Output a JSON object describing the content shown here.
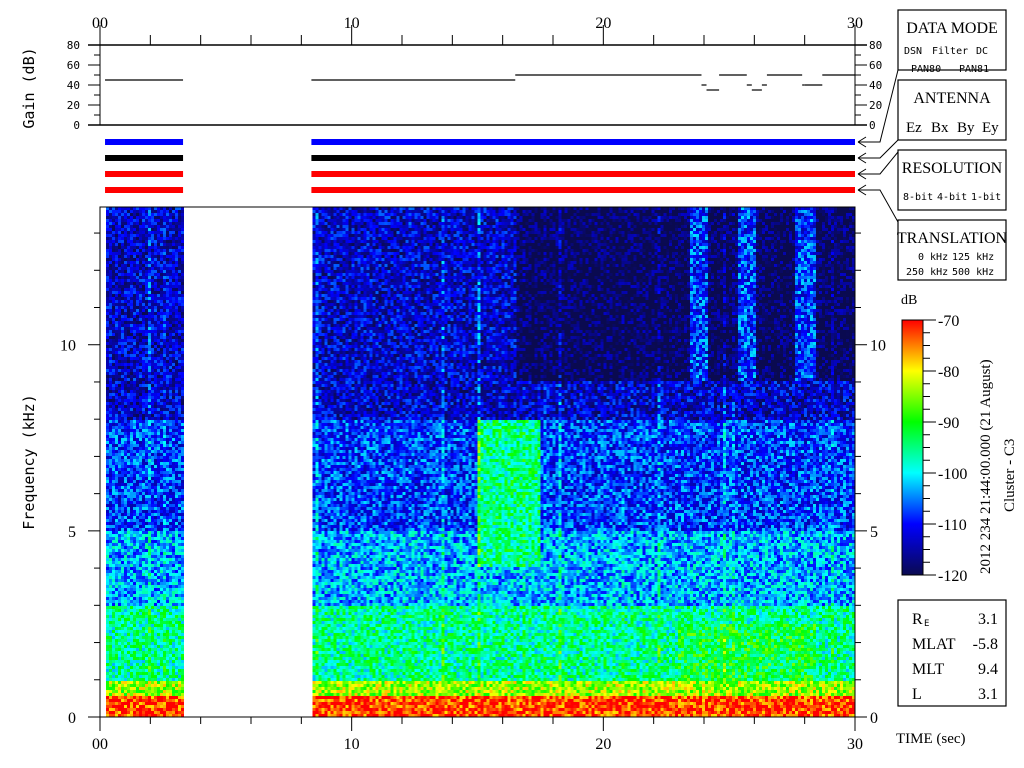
{
  "chart_data": {
    "type": "heatmap",
    "spacecraft": "Cluster - C3",
    "timestamp": "2012 234 21:44:00.000 (21 August)",
    "xlabel": "TIME (sec)",
    "ylabel": "Frequency (kHz)",
    "xlim": [
      0,
      30
    ],
    "ylim": [
      0,
      13.7
    ],
    "x_tick_labels": [
      "00",
      "10",
      "20",
      "30"
    ],
    "x_ticks": [
      0,
      10,
      20,
      30
    ],
    "y_tick_labels": [
      "0",
      "5",
      "10"
    ],
    "y_ticks": [
      0,
      5,
      10
    ],
    "data_intervals": [
      [
        0.2,
        3.3
      ],
      [
        8.4,
        30
      ]
    ],
    "colorbar": {
      "label": "dB",
      "range": [
        -120,
        -70
      ],
      "ticks": [
        -70,
        -80,
        -90,
        -100,
        -110,
        -120
      ],
      "tick_labels": [
        "-70",
        "-80",
        "-90",
        "-100",
        "-110",
        "-120"
      ],
      "colormap": [
        "#0a0a50",
        "#0000ff",
        "#00ffff",
        "#00ff00",
        "#ffff00",
        "#ff0000"
      ]
    },
    "spectral_features": [
      {
        "freq_khz": [
          0,
          0.6
        ],
        "time_s": [
          0,
          30
        ],
        "level_db": -72
      },
      {
        "freq_khz": [
          0.6,
          1.0
        ],
        "time_s": [
          0,
          30
        ],
        "level_db": -84
      },
      {
        "freq_khz": [
          1.0,
          3.0
        ],
        "time_s": [
          0,
          30
        ],
        "level_db": -96
      },
      {
        "freq_khz": [
          3.0,
          5.0
        ],
        "time_s": [
          0,
          30
        ],
        "level_db": -103
      },
      {
        "freq_khz": [
          5.0,
          8.0
        ],
        "time_s": [
          0,
          30
        ],
        "level_db": -108
      },
      {
        "freq_khz": [
          8.0,
          13.7
        ],
        "time_s": [
          0,
          16.5
        ],
        "level_db": -113
      },
      {
        "freq_khz": [
          9.0,
          13.7
        ],
        "time_s": [
          16.5,
          30
        ],
        "level_db": -120
      },
      {
        "freq_khz": [
          4.0,
          8.0
        ],
        "time_s": [
          15.0,
          17.5
        ],
        "level_db": -95
      },
      {
        "freq_khz": [
          1.0,
          2.5
        ],
        "time_s": [
          23.0,
          28.5
        ],
        "level_db": -92
      }
    ],
    "gain_panel": {
      "ylabel": "Gain (dB)",
      "ylim": [
        0,
        80
      ],
      "y_tick_labels": [
        "0",
        "20",
        "40",
        "60",
        "80"
      ],
      "y_ticks": [
        0,
        20,
        40,
        60,
        80
      ],
      "segments": [
        {
          "t": [
            0.2,
            3.3
          ],
          "gain": 45
        },
        {
          "t": [
            8.4,
            16.5
          ],
          "gain": 45
        },
        {
          "t": [
            16.5,
            23.9
          ],
          "gain": 50
        },
        {
          "t": [
            23.9,
            24.1
          ],
          "gain": 40
        },
        {
          "t": [
            24.1,
            24.6
          ],
          "gain": 35
        },
        {
          "t": [
            24.6,
            25.7
          ],
          "gain": 50
        },
        {
          "t": [
            25.7,
            25.9
          ],
          "gain": 40
        },
        {
          "t": [
            25.9,
            26.3
          ],
          "gain": 35
        },
        {
          "t": [
            26.3,
            26.5
          ],
          "gain": 40
        },
        {
          "t": [
            26.5,
            27.9
          ],
          "gain": 50
        },
        {
          "t": [
            27.9,
            28.0
          ],
          "gain": 40
        },
        {
          "t": [
            28.0,
            28.7
          ],
          "gain": 40
        },
        {
          "t": [
            28.7,
            30.0
          ],
          "gain": 50
        }
      ]
    },
    "status_tracks": [
      {
        "name": "DATA MODE",
        "color": "#0000ff",
        "intervals": [
          [
            0.2,
            3.3
          ],
          [
            8.4,
            30
          ]
        ]
      },
      {
        "name": "ANTENNA",
        "color": "#000000",
        "intervals": [
          [
            0.2,
            3.3
          ],
          [
            8.4,
            30
          ]
        ]
      },
      {
        "name": "RESOLUTION",
        "color": "#ff0000",
        "intervals": [
          [
            0.2,
            3.3
          ],
          [
            8.4,
            30
          ]
        ]
      },
      {
        "name": "TRANSLATION",
        "color": "#ff0000",
        "intervals": [
          [
            0.2,
            3.3
          ],
          [
            8.4,
            30
          ]
        ]
      }
    ]
  },
  "legend": {
    "data_mode": {
      "title": "DATA MODE",
      "items": [
        {
          "label": "DSN",
          "color": "#ff0000"
        },
        {
          "label": "Filter",
          "color": "#00e000"
        },
        {
          "label": "DC",
          "color": "#0000ff"
        },
        {
          "label": "PAN80",
          "color": "#000000"
        },
        {
          "label": "PAN81",
          "color": "#00e0ff"
        }
      ]
    },
    "antenna": {
      "title": "ANTENNA",
      "items": [
        {
          "label": "Ez",
          "color": "#ff0000"
        },
        {
          "label": "Bx",
          "color": "#00e000"
        },
        {
          "label": "By",
          "color": "#0000ff"
        },
        {
          "label": "Ey",
          "color": "#000000"
        }
      ]
    },
    "resolution": {
      "title": "RESOLUTION",
      "items": [
        {
          "label": "8-bit",
          "color": "#ff0000"
        },
        {
          "label": "4-bit",
          "color": "#00e000"
        },
        {
          "label": "1-bit",
          "color": "#0000ff"
        }
      ]
    },
    "translation": {
      "title": "TRANSLATION",
      "items": [
        {
          "label": "0 kHz",
          "color": "#ff0000"
        },
        {
          "label": "125 kHz",
          "color": "#00e000"
        },
        {
          "label": "250 kHz",
          "color": "#0000ff"
        },
        {
          "label": "500 kHz",
          "color": "#000000"
        }
      ]
    }
  },
  "info": [
    {
      "label": "R",
      "sub": "E",
      "value": "3.1"
    },
    {
      "label": "MLAT",
      "value": "-5.8"
    },
    {
      "label": "MLT",
      "value": "9.4"
    },
    {
      "label": "L",
      "value": "3.1"
    }
  ]
}
